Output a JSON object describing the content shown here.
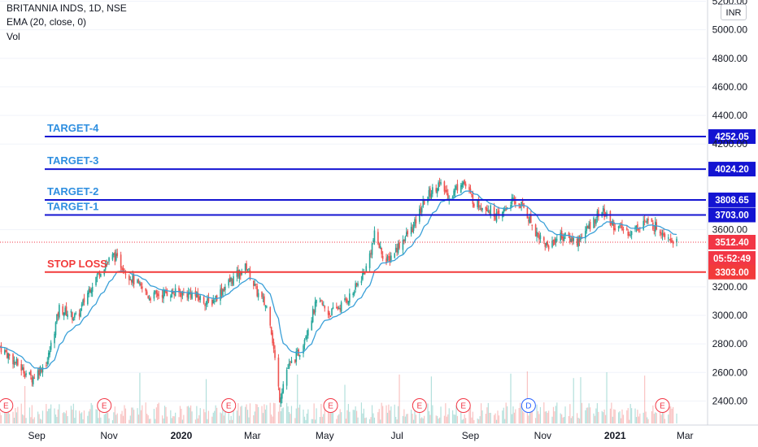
{
  "header": {
    "symbol_line": "BRITANNIA INDS, 1D, NSE",
    "indicator": "EMA (20, close, 0)",
    "volume": "Vol",
    "currency": "INR"
  },
  "colors": {
    "up": "#26a69a",
    "down": "#ef5350",
    "ema": "#3aa0d8",
    "target": "#1414d2",
    "target_text": "#2f8fe0",
    "stop": "#f23b3b",
    "price_tag": "#f23645"
  },
  "chart_data": {
    "type": "candlestick",
    "price_axis_ticks": [
      "5200.00",
      "5000.00",
      "4800.00",
      "4600.00",
      "4400.00",
      "4200.00",
      "3600.00",
      "3200.00",
      "3000.00",
      "2800.00",
      "2600.00",
      "2400.00"
    ],
    "time_axis_ticks": [
      "Sep",
      "Nov",
      "2020",
      "Mar",
      "May",
      "Jul",
      "Sep",
      "Nov",
      "2021",
      "Mar"
    ],
    "ylim": [
      2260,
      5220
    ],
    "levels": [
      {
        "label": "TARGET-4",
        "value": 4252.05,
        "tag": "4252.05",
        "kind": "target"
      },
      {
        "label": "TARGET-3",
        "value": 4024.2,
        "tag": "4024.20",
        "kind": "target"
      },
      {
        "label": "TARGET-2",
        "value": 3808.65,
        "tag": "3808.65",
        "kind": "target"
      },
      {
        "label": "TARGET-1",
        "value": 3703.0,
        "tag": "3703.00",
        "kind": "target"
      },
      {
        "label": "STOP LOSS",
        "value": 3303.0,
        "tag": "3303.00",
        "kind": "stop"
      }
    ],
    "last_price": {
      "value": 3512.4,
      "tag": "3512.40",
      "countdown": "05:52:49"
    },
    "price_anchors": [
      [
        "2019-08-01",
        2780
      ],
      [
        "2019-08-20",
        2620
      ],
      [
        "2019-08-28",
        2560
      ],
      [
        "2019-09-10",
        2680
      ],
      [
        "2019-09-20",
        3050
      ],
      [
        "2019-10-05",
        2980
      ],
      [
        "2019-10-15",
        3180
      ],
      [
        "2019-10-25",
        3320
      ],
      [
        "2019-11-05",
        3420
      ],
      [
        "2019-11-20",
        3260
      ],
      [
        "2019-12-05",
        3130
      ],
      [
        "2019-12-20",
        3160
      ],
      [
        "2020-01-10",
        3150
      ],
      [
        "2020-01-25",
        3080
      ],
      [
        "2020-02-10",
        3230
      ],
      [
        "2020-02-25",
        3340
      ],
      [
        "2020-03-05",
        3160
      ],
      [
        "2020-03-15",
        3030
      ],
      [
        "2020-03-24",
        2420
      ],
      [
        "2020-03-30",
        2620
      ],
      [
        "2020-04-10",
        2750
      ],
      [
        "2020-04-25",
        3110
      ],
      [
        "2020-05-05",
        3010
      ],
      [
        "2020-05-15",
        3070
      ],
      [
        "2020-05-25",
        3160
      ],
      [
        "2020-06-05",
        3330
      ],
      [
        "2020-06-12",
        3560
      ],
      [
        "2020-06-22",
        3370
      ],
      [
        "2020-07-05",
        3520
      ],
      [
        "2020-07-15",
        3620
      ],
      [
        "2020-07-25",
        3820
      ],
      [
        "2020-08-05",
        3920
      ],
      [
        "2020-08-15",
        3830
      ],
      [
        "2020-08-25",
        3950
      ],
      [
        "2020-09-05",
        3780
      ],
      [
        "2020-09-15",
        3760
      ],
      [
        "2020-09-25",
        3680
      ],
      [
        "2020-10-05",
        3800
      ],
      [
        "2020-10-15",
        3770
      ],
      [
        "2020-10-25",
        3600
      ],
      [
        "2020-11-05",
        3480
      ],
      [
        "2020-11-15",
        3560
      ],
      [
        "2020-11-30",
        3520
      ],
      [
        "2020-12-10",
        3620
      ],
      [
        "2020-12-20",
        3740
      ],
      [
        "2021-01-01",
        3620
      ],
      [
        "2021-01-15",
        3580
      ],
      [
        "2021-01-25",
        3660
      ],
      [
        "2021-02-05",
        3620
      ],
      [
        "2021-02-15",
        3560
      ],
      [
        "2021-02-22",
        3512
      ]
    ],
    "earnings_events": [
      "E",
      "E",
      "E",
      "E",
      "E",
      "D",
      "E",
      "E"
    ]
  }
}
